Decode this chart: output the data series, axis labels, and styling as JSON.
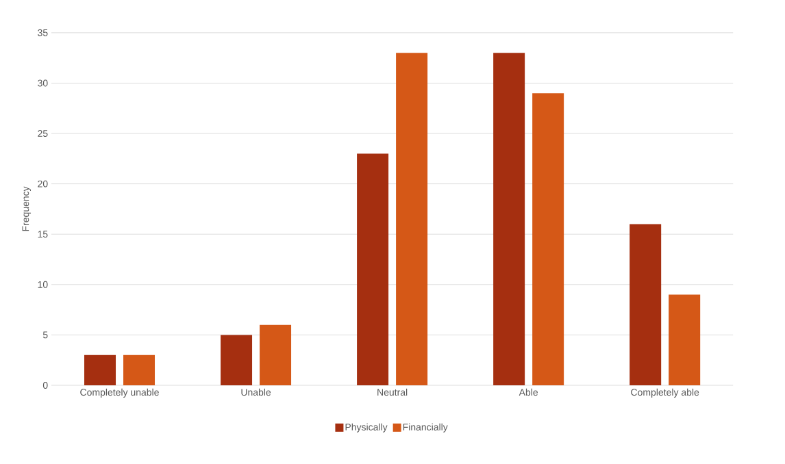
{
  "chart_data": {
    "type": "bar",
    "ylabel": "Frequency",
    "categories": [
      "Completely unable",
      "Unable",
      "Neutral",
      "Able",
      "Completely able"
    ],
    "series": [
      {
        "name": "Physically",
        "color": "#a52f10",
        "values": [
          3,
          5,
          23,
          33,
          16
        ]
      },
      {
        "name": "Financially",
        "color": "#d55817",
        "values": [
          3,
          6,
          33,
          29,
          9
        ]
      }
    ],
    "ylim": [
      0,
      35
    ],
    "yticks": [
      0,
      5,
      10,
      15,
      20,
      25,
      30,
      35
    ],
    "grid": "y",
    "legend": "bottom"
  }
}
